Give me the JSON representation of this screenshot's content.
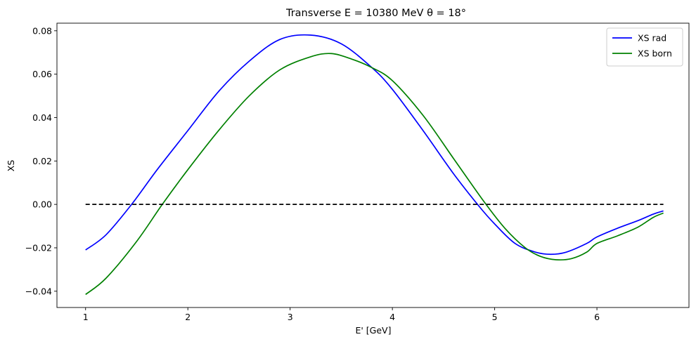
{
  "chart_data": {
    "type": "line",
    "title": "Transverse E = 10380 MeV θ = 18°",
    "xlabel": "E' [GeV]",
    "ylabel": "XS",
    "xlim": [
      0.72,
      6.9
    ],
    "ylim": [
      -0.0475,
      0.0835
    ],
    "xticks": [
      1,
      2,
      3,
      4,
      5,
      6
    ],
    "yticks": [
      -0.04,
      -0.02,
      0.0,
      0.02,
      0.04,
      0.06,
      0.08
    ],
    "ytick_labels": [
      "−0.04",
      "−0.02",
      "0.00",
      "0.02",
      "0.04",
      "0.06",
      "0.08"
    ],
    "grid": false,
    "legend_position": "top-right",
    "series": [
      {
        "name": "XS rad",
        "color": "#0000ff",
        "x": [
          1.0,
          1.2,
          1.45,
          1.7,
          2.0,
          2.3,
          2.6,
          2.9,
          3.2,
          3.5,
          3.8,
          4.0,
          4.3,
          4.6,
          4.85,
          5.0,
          5.2,
          5.4,
          5.55,
          5.7,
          5.9,
          6.0,
          6.2,
          6.4,
          6.55,
          6.65
        ],
        "y": [
          -0.021,
          -0.014,
          0.0,
          0.016,
          0.034,
          0.052,
          0.066,
          0.076,
          0.078,
          0.074,
          0.063,
          0.053,
          0.034,
          0.014,
          -0.001,
          -0.009,
          -0.018,
          -0.022,
          -0.023,
          -0.022,
          -0.018,
          -0.015,
          -0.011,
          -0.0075,
          -0.0045,
          -0.003
        ]
      },
      {
        "name": "XS born",
        "color": "#008000",
        "x": [
          1.0,
          1.2,
          1.5,
          1.75,
          2.0,
          2.3,
          2.6,
          2.9,
          3.2,
          3.4,
          3.6,
          3.8,
          4.0,
          4.3,
          4.6,
          4.9,
          5.1,
          5.3,
          5.45,
          5.6,
          5.75,
          5.9,
          6.0,
          6.2,
          6.4,
          6.55,
          6.65
        ],
        "y": [
          -0.0415,
          -0.034,
          -0.017,
          0.0,
          0.016,
          0.034,
          0.05,
          0.062,
          0.068,
          0.0695,
          0.067,
          0.063,
          0.057,
          0.041,
          0.021,
          0.001,
          -0.011,
          -0.02,
          -0.024,
          -0.0255,
          -0.025,
          -0.022,
          -0.018,
          -0.0145,
          -0.0105,
          -0.006,
          -0.004
        ]
      },
      {
        "name": "",
        "color": "#000000",
        "dashed": true,
        "x": [
          1.0,
          6.65
        ],
        "y": [
          0.0,
          0.0
        ]
      }
    ]
  }
}
